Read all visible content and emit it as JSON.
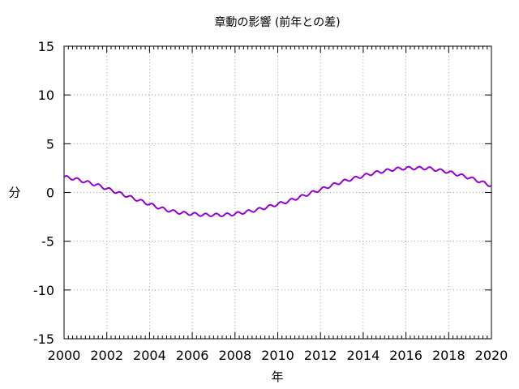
{
  "chart_data": {
    "type": "line",
    "title": "章動の影響 (前年との差)",
    "xlabel": "年",
    "ylabel": "分",
    "xlim": [
      2000,
      2020
    ],
    "ylim": [
      -15,
      15
    ],
    "x_ticks": [
      2000,
      2002,
      2004,
      2006,
      2008,
      2010,
      2012,
      2014,
      2016,
      2018,
      2020
    ],
    "y_ticks": [
      -15,
      -10,
      -5,
      0,
      5,
      10,
      15
    ],
    "x_tick_labels": [
      "2000",
      "2002",
      "2004",
      "2006",
      "2008",
      "2010",
      "2012",
      "2014",
      "2016",
      "2018",
      "2020"
    ],
    "y_tick_labels": [
      "-15",
      "-10",
      "-5",
      "0",
      "5",
      "10",
      "15"
    ],
    "grid": true,
    "series": [
      {
        "color": "#9400d3",
        "x": [
          2000.0,
          2000.5,
          2001.0,
          2001.5,
          2002.0,
          2002.5,
          2003.0,
          2003.5,
          2004.0,
          2004.5,
          2005.0,
          2005.5,
          2006.0,
          2006.5,
          2007.0,
          2007.5,
          2008.0,
          2008.5,
          2009.0,
          2009.5,
          2010.0,
          2010.5,
          2011.0,
          2011.5,
          2012.0,
          2012.5,
          2013.0,
          2013.5,
          2014.0,
          2014.5,
          2015.0,
          2015.5,
          2016.0,
          2016.5,
          2017.0,
          2017.5,
          2018.0,
          2018.5,
          2019.0,
          2019.5,
          2020.0
        ],
        "y": [
          1.6,
          1.4,
          1.1,
          0.8,
          0.4,
          0.0,
          -0.4,
          -0.8,
          -1.2,
          -1.6,
          -1.9,
          -2.1,
          -2.2,
          -2.3,
          -2.3,
          -2.3,
          -2.2,
          -2.0,
          -1.8,
          -1.5,
          -1.2,
          -0.9,
          -0.5,
          -0.1,
          0.3,
          0.7,
          1.1,
          1.4,
          1.7,
          2.0,
          2.2,
          2.4,
          2.5,
          2.5,
          2.5,
          2.3,
          2.1,
          1.8,
          1.5,
          1.1,
          0.7
        ],
        "ripple_amplitude": 0.15,
        "ripple_period_years": 0.5
      }
    ]
  }
}
